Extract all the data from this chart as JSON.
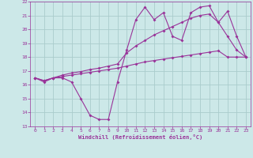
{
  "xlabel": "Windchill (Refroidissement éolien,°C)",
  "xlim": [
    -0.5,
    23.5
  ],
  "ylim": [
    13,
    22
  ],
  "background_color": "#cce8e8",
  "grid_color": "#aacccc",
  "line_color": "#993399",
  "xticks": [
    0,
    1,
    2,
    3,
    4,
    5,
    6,
    7,
    8,
    9,
    10,
    11,
    12,
    13,
    14,
    15,
    16,
    17,
    18,
    19,
    20,
    21,
    22,
    23
  ],
  "yticks": [
    13,
    14,
    15,
    16,
    17,
    18,
    19,
    20,
    21,
    22
  ],
  "line1_x": [
    0,
    1,
    2,
    3,
    4,
    5,
    6,
    7,
    8,
    9,
    10,
    11,
    12,
    13,
    14,
    15,
    16,
    17,
    18,
    19,
    20,
    21,
    22,
    23
  ],
  "line1_y": [
    16.5,
    16.2,
    16.5,
    16.5,
    16.2,
    15.0,
    13.8,
    13.5,
    13.5,
    16.2,
    18.5,
    20.7,
    21.6,
    20.7,
    21.2,
    19.5,
    19.2,
    21.2,
    21.6,
    21.7,
    20.5,
    21.3,
    19.5,
    18.0
  ],
  "line2_x": [
    0,
    1,
    2,
    3,
    4,
    5,
    6,
    7,
    8,
    9,
    10,
    11,
    12,
    13,
    14,
    15,
    16,
    17,
    18,
    19,
    20,
    21,
    22,
    23
  ],
  "line2_y": [
    16.5,
    16.3,
    16.5,
    16.6,
    16.7,
    16.8,
    16.9,
    17.0,
    17.1,
    17.2,
    17.35,
    17.5,
    17.65,
    17.75,
    17.85,
    17.95,
    18.05,
    18.15,
    18.25,
    18.35,
    18.45,
    18.0,
    18.0,
    18.0
  ],
  "line3_x": [
    0,
    1,
    2,
    3,
    4,
    5,
    6,
    7,
    8,
    9,
    10,
    11,
    12,
    13,
    14,
    15,
    16,
    17,
    18,
    19,
    20,
    21,
    22,
    23
  ],
  "line3_y": [
    16.5,
    16.3,
    16.5,
    16.7,
    16.85,
    16.95,
    17.1,
    17.2,
    17.35,
    17.5,
    18.3,
    18.8,
    19.2,
    19.6,
    19.9,
    20.2,
    20.5,
    20.8,
    21.0,
    21.1,
    20.5,
    19.5,
    18.5,
    18.0
  ]
}
